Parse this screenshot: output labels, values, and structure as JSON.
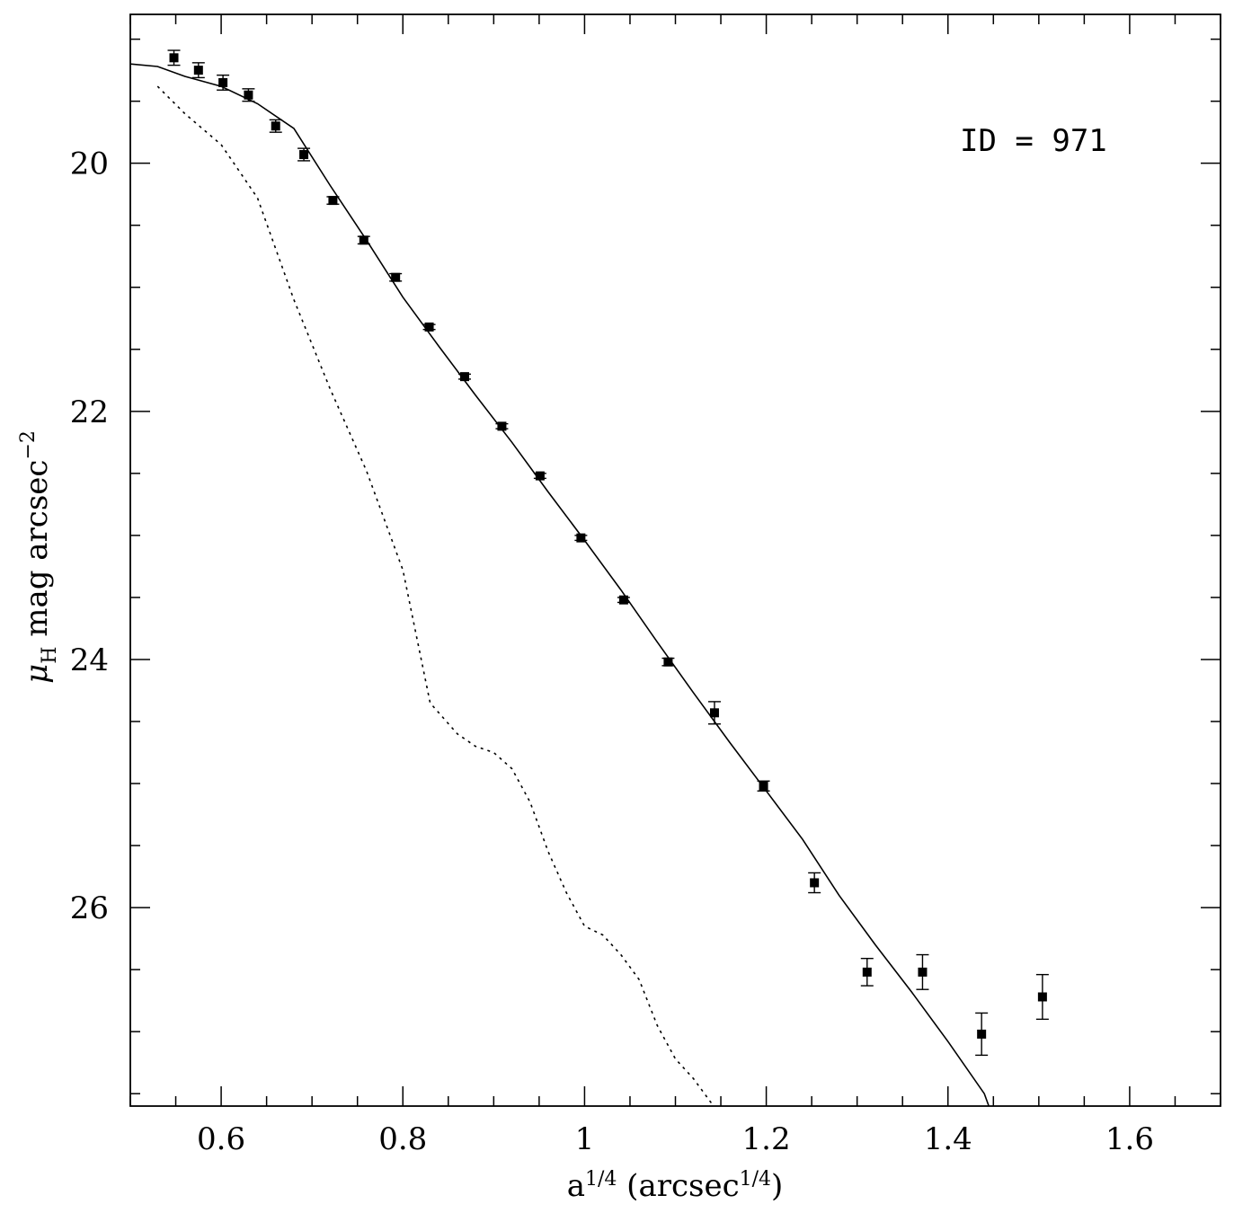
{
  "chart_data": {
    "type": "scatter",
    "annotation": "ID = 971",
    "xlabel": {
      "base": "a",
      "base_exp": "1/4",
      "open": " (arcsec",
      "unit_exp": "1/4",
      "close": ")"
    },
    "ylabel": {
      "mu": "μ",
      "mu_sub": "H",
      "text": " mag arcsec",
      "exp": "−2"
    },
    "xlim": [
      0.5,
      1.7
    ],
    "ylim": [
      27.6,
      18.8
    ],
    "y_inverted": true,
    "x_major_ticks": [
      0.6,
      0.8,
      1.0,
      1.2,
      1.4,
      1.6
    ],
    "x_tick_labels": [
      "0.6",
      "0.8",
      "1",
      "1.2",
      "1.4",
      "1.6"
    ],
    "y_major_ticks": [
      20,
      22,
      24,
      26
    ],
    "y_tick_labels": [
      "20",
      "22",
      "24",
      "26"
    ],
    "grid": false,
    "series": [
      {
        "kind": "points_with_errorbars",
        "marker": "filled-square",
        "x": [
          0.548,
          0.575,
          0.602,
          0.63,
          0.66,
          0.691,
          0.723,
          0.757,
          0.792,
          0.829,
          0.868,
          0.909,
          0.951,
          0.996,
          1.043,
          1.092,
          1.143,
          1.197,
          1.253,
          1.311,
          1.372,
          1.437,
          1.504
        ],
        "y": [
          19.15,
          19.25,
          19.35,
          19.45,
          19.7,
          19.93,
          20.3,
          20.62,
          20.92,
          21.32,
          21.72,
          22.12,
          22.52,
          23.02,
          23.52,
          24.02,
          24.43,
          25.02,
          25.8,
          26.52,
          26.52,
          27.02,
          26.72
        ],
        "err": [
          0.06,
          0.06,
          0.06,
          0.05,
          0.05,
          0.05,
          0.03,
          0.03,
          0.03,
          0.02,
          0.02,
          0.02,
          0.02,
          0.02,
          0.02,
          0.03,
          0.09,
          0.04,
          0.08,
          0.11,
          0.14,
          0.17,
          0.18
        ]
      },
      {
        "kind": "model_fit",
        "style": "solid",
        "x": [
          0.5,
          0.53,
          0.56,
          0.6,
          0.64,
          0.68,
          0.72,
          0.76,
          0.8,
          0.84,
          0.88,
          0.92,
          0.96,
          1.0,
          1.04,
          1.08,
          1.12,
          1.16,
          1.2,
          1.24,
          1.28,
          1.32,
          1.36,
          1.4,
          1.44,
          1.445
        ],
        "y": [
          19.2,
          19.22,
          19.3,
          19.38,
          19.52,
          19.72,
          20.18,
          20.62,
          21.08,
          21.48,
          21.87,
          22.25,
          22.65,
          23.04,
          23.44,
          23.86,
          24.27,
          24.67,
          25.06,
          25.45,
          25.9,
          26.3,
          26.68,
          27.08,
          27.5,
          27.6
        ]
      },
      {
        "kind": "psf",
        "style": "dotted",
        "x": [
          0.53,
          0.56,
          0.6,
          0.64,
          0.68,
          0.72,
          0.76,
          0.8,
          0.83,
          0.86,
          0.88,
          0.9,
          0.92,
          0.94,
          0.96,
          0.98,
          1.0,
          1.02,
          1.04,
          1.06,
          1.08,
          1.1,
          1.12,
          1.14
        ],
        "y": [
          19.38,
          19.6,
          19.85,
          20.28,
          21.1,
          21.82,
          22.48,
          23.28,
          24.35,
          24.6,
          24.7,
          24.75,
          24.88,
          25.15,
          25.55,
          25.88,
          26.15,
          26.22,
          26.38,
          26.58,
          26.95,
          27.22,
          27.38,
          27.58
        ]
      }
    ]
  }
}
